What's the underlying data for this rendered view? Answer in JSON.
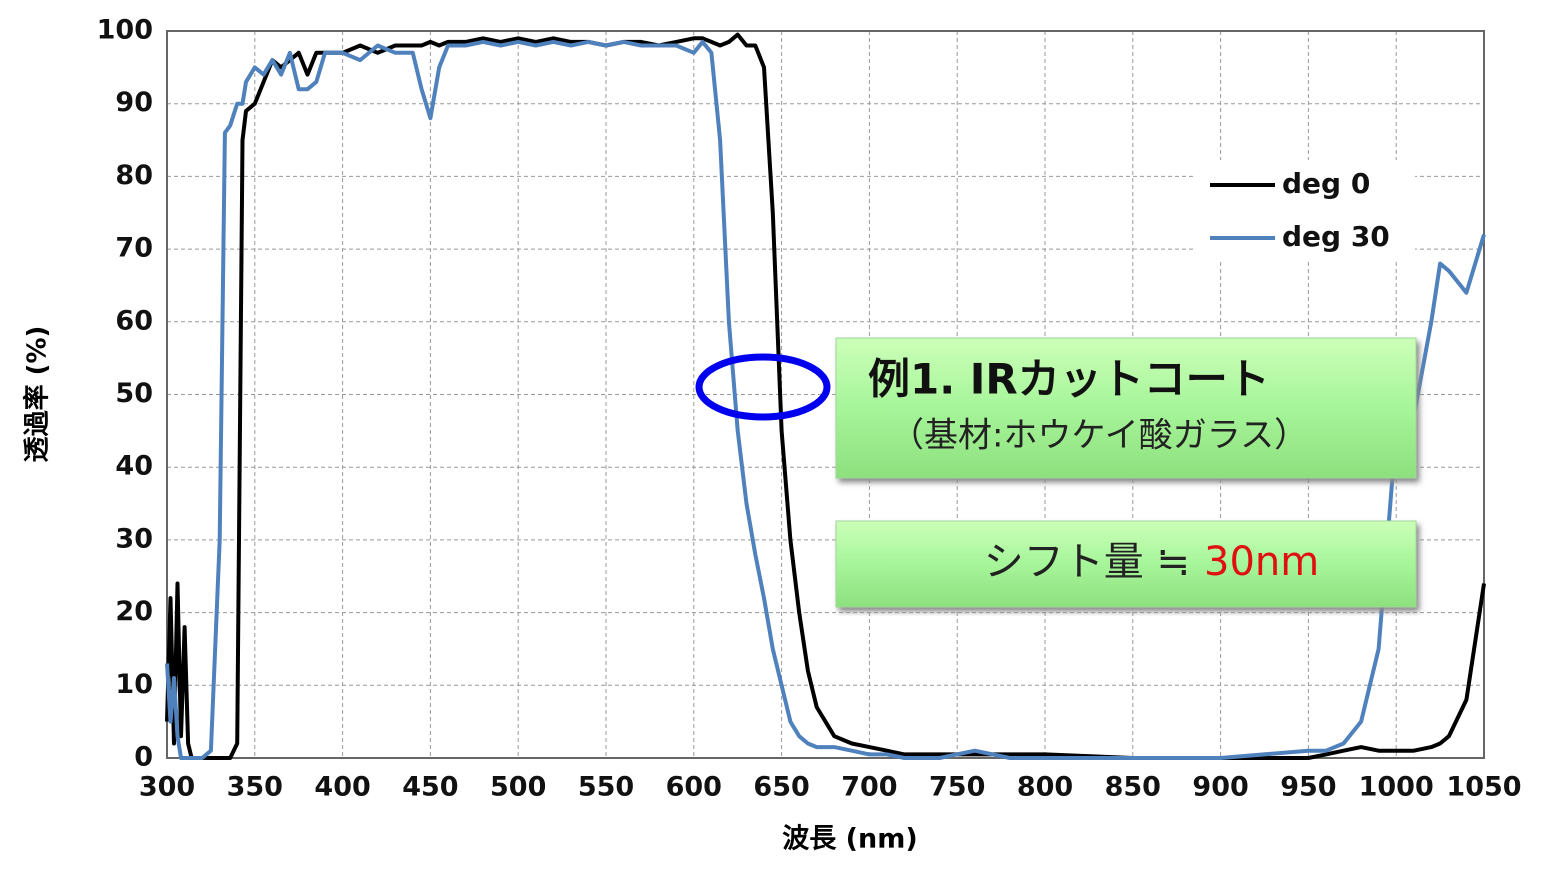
{
  "chart_data": {
    "type": "line",
    "xlabel": "波長 (nm)",
    "ylabel": "透過率 (%)",
    "x": [
      300,
      302,
      304,
      306,
      308,
      310,
      312,
      314,
      316,
      320,
      325,
      330,
      333,
      336,
      340,
      343,
      345,
      350,
      355,
      360,
      365,
      370,
      375,
      380,
      385,
      390,
      400,
      410,
      420,
      430,
      440,
      445,
      450,
      455,
      460,
      470,
      480,
      490,
      500,
      510,
      520,
      530,
      540,
      550,
      560,
      570,
      580,
      590,
      600,
      605,
      610,
      615,
      620,
      625,
      630,
      635,
      640,
      645,
      650,
      655,
      660,
      665,
      670,
      680,
      690,
      700,
      710,
      720,
      740,
      760,
      780,
      800,
      850,
      900,
      950,
      960,
      970,
      980,
      990,
      1000,
      1010,
      1020,
      1025,
      1030,
      1040,
      1050
    ],
    "series": [
      {
        "name": "deg 0",
        "color": "#000000",
        "values": [
          5,
          22,
          2,
          24,
          3,
          18,
          2,
          0,
          0,
          0,
          0,
          0,
          0,
          0,
          2,
          85,
          89,
          90,
          93,
          96,
          95,
          96,
          97,
          94,
          97,
          97,
          97,
          98,
          97,
          98,
          98,
          98,
          98.5,
          98,
          98.5,
          98.5,
          99,
          98.5,
          99,
          98.5,
          99,
          98.5,
          98.5,
          98,
          98.5,
          98.5,
          98,
          98.5,
          99,
          99,
          98.5,
          98,
          98.5,
          99.5,
          98,
          98,
          95,
          75,
          45,
          30,
          20,
          12,
          7,
          3,
          2,
          1.5,
          1,
          0.5,
          0.5,
          0.5,
          0.5,
          0.5,
          0,
          0,
          0,
          0.5,
          1,
          1.5,
          1,
          1,
          1,
          1.5,
          2,
          3,
          8,
          24
        ]
      },
      {
        "name": "deg 30",
        "color": "#4f81bd",
        "values": [
          13,
          5,
          11,
          3,
          0,
          0,
          0,
          0,
          0,
          0,
          1,
          30,
          86,
          87,
          90,
          90,
          93,
          95,
          94,
          96,
          94,
          97,
          92,
          92,
          93,
          97,
          97,
          96,
          98,
          97,
          97,
          92,
          88,
          95,
          98,
          98,
          98.5,
          98,
          98.5,
          98,
          98.5,
          98,
          98.5,
          98,
          98.5,
          98,
          98,
          98,
          97,
          98.5,
          97,
          85,
          60,
          45,
          35,
          28,
          22,
          15,
          10,
          5,
          3,
          2,
          1.5,
          1.5,
          1,
          0.5,
          0.5,
          0,
          0,
          1,
          0,
          0,
          0,
          0,
          1,
          1,
          2,
          5,
          15,
          45,
          47,
          60,
          68,
          67,
          64,
          72
        ]
      }
    ],
    "xlim": [
      300,
      1050
    ],
    "xticks": [
      300,
      350,
      400,
      450,
      500,
      550,
      600,
      650,
      700,
      750,
      800,
      850,
      900,
      950,
      1000,
      1050
    ],
    "ylim": [
      0,
      100
    ],
    "yticks": [
      0,
      10,
      20,
      30,
      40,
      50,
      60,
      70,
      80,
      90,
      100
    ],
    "grid": true,
    "legend": "upper right",
    "annotations": [
      "例1. IRカットコート",
      "（基材:ホウケイ酸ガラス）",
      "シフト量 ≒",
      "30nm"
    ]
  }
}
